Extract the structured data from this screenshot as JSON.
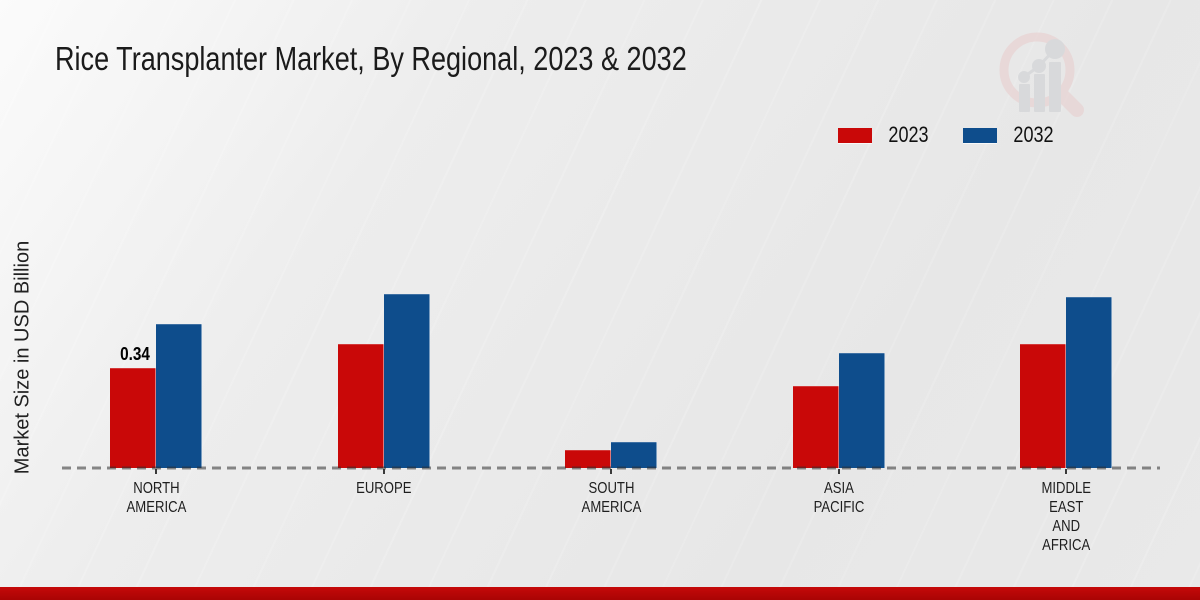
{
  "title": "Rice Transplanter Market, By Regional, 2023 & 2032",
  "y_axis_label": "Market Size in USD Billion",
  "legend": {
    "items": [
      {
        "label": "2023",
        "color": "#c90808"
      },
      {
        "label": "2032",
        "color": "#0e4d8c"
      }
    ]
  },
  "chart_data": {
    "type": "bar",
    "categories": [
      "NORTH\nAMERICA",
      "EUROPE",
      "SOUTH\nAMERICA",
      "ASIA\nPACIFIC",
      "MIDDLE\nEAST\nAND\nAFRICA"
    ],
    "series": [
      {
        "name": "2023",
        "color": "#c90808",
        "values": [
          0.34,
          0.42,
          0.06,
          0.28,
          0.42
        ]
      },
      {
        "name": "2032",
        "color": "#0e4d8c",
        "values": [
          0.49,
          0.59,
          0.09,
          0.39,
          0.58
        ]
      }
    ],
    "annotations": [
      {
        "series": "2023",
        "category_index": 0,
        "text": "0.34"
      }
    ],
    "title": "Rice Transplanter Market, By Regional, 2023 & 2032",
    "xlabel": "",
    "ylabel": "Market Size in USD Billion",
    "ylim": [
      0,
      0.68
    ],
    "grid": "baseline-dashed-only",
    "legend_position": "top-right"
  },
  "colors": {
    "series_2023": "#c90808",
    "series_2032": "#0e4d8c",
    "footer_bar": "#b30606",
    "dashed_baseline": "rgba(45,45,45,0.55)",
    "background": "#eaeaea"
  }
}
